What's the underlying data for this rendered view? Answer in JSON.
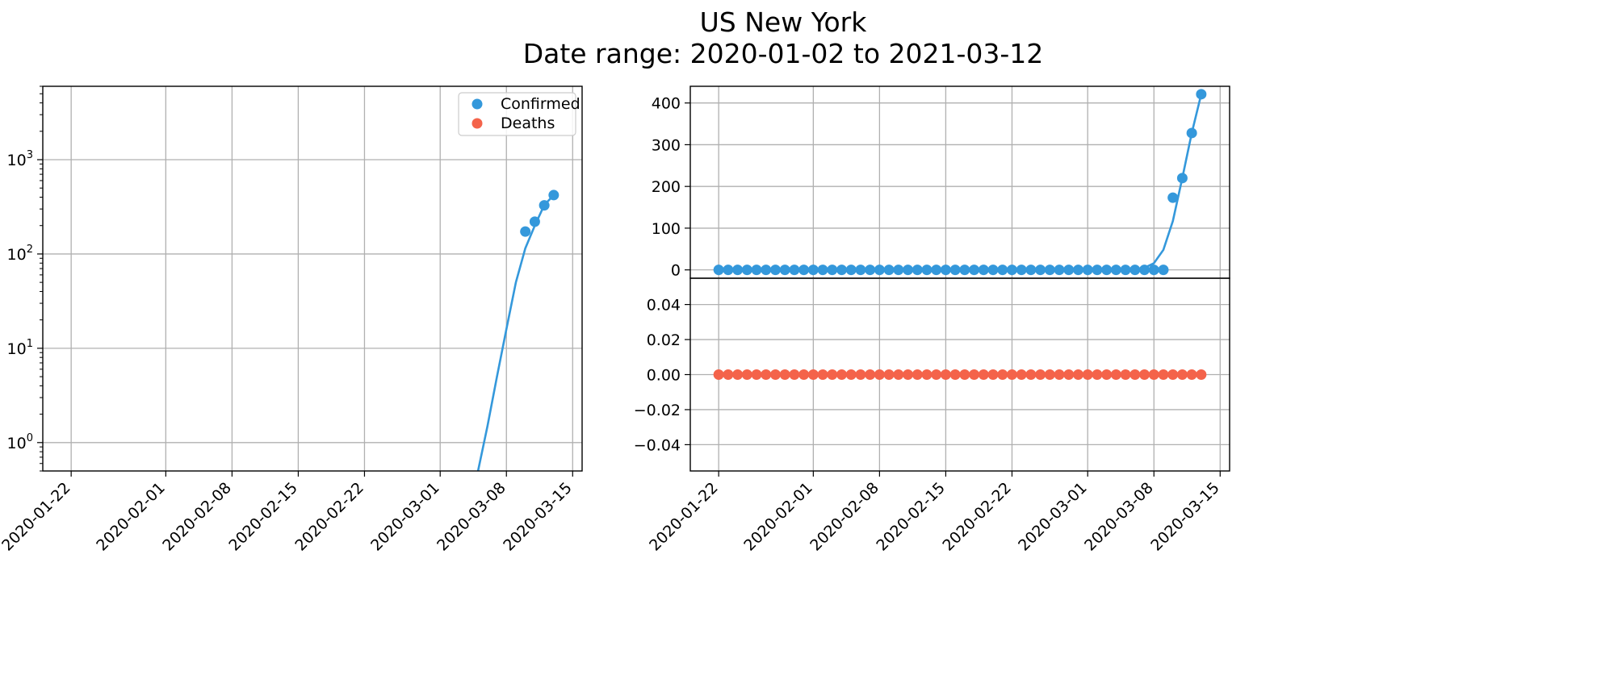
{
  "title": {
    "line1": "US New York",
    "line2": "Date range: 2020-01-02 to 2021-03-12"
  },
  "colors": {
    "confirmed": "#3498db",
    "deaths": "#f4634a",
    "grid": "#b0b0b0",
    "axis": "#000000"
  },
  "chart_data": [
    {
      "type": "line",
      "panel": "left",
      "scale": "log",
      "grid": true,
      "legend": "top-right",
      "x_ticks": [
        "2020-01-22",
        "2020-02-01",
        "2020-02-08",
        "2020-02-15",
        "2020-02-22",
        "2020-03-01",
        "2020-03-08",
        "2020-03-15"
      ],
      "y_ticks": [
        1,
        10,
        100,
        1000
      ],
      "y_tick_labels": [
        {
          "base": "10",
          "exp": "0"
        },
        {
          "base": "10",
          "exp": "1"
        },
        {
          "base": "10",
          "exp": "2"
        },
        {
          "base": "10",
          "exp": "3"
        }
      ],
      "xlim": [
        "2020-01-19",
        "2020-03-16"
      ],
      "ylim": [
        0.5,
        6000
      ],
      "legend_entries": [
        "Confirmed",
        "Deaths"
      ],
      "series": [
        {
          "name": "Confirmed",
          "marker": "point",
          "x": [
            "2020-03-10",
            "2020-03-11",
            "2020-03-12",
            "2020-03-13"
          ],
          "values": [
            173,
            220,
            328,
            421
          ]
        },
        {
          "name": "Confirmed",
          "marker": "line",
          "x": [
            "2020-03-05",
            "2020-03-06",
            "2020-03-07",
            "2020-03-08",
            "2020-03-09",
            "2020-03-10",
            "2020-03-11",
            "2020-03-12",
            "2020-03-13"
          ],
          "values": [
            0.5,
            1.5,
            5,
            16,
            50,
            115,
            200,
            330,
            421
          ]
        }
      ]
    },
    {
      "type": "line",
      "panel": "right-top",
      "grid": true,
      "y_ticks": [
        0,
        100,
        200,
        300,
        400
      ],
      "ylim": [
        -20,
        440
      ],
      "xlim": [
        "2020-01-19",
        "2020-03-16"
      ],
      "series": [
        {
          "name": "Confirmed",
          "marker": "point",
          "x": [
            "2020-01-22",
            "2020-01-23",
            "2020-01-24",
            "2020-01-25",
            "2020-01-26",
            "2020-01-27",
            "2020-01-28",
            "2020-01-29",
            "2020-01-30",
            "2020-01-31",
            "2020-02-01",
            "2020-02-02",
            "2020-02-03",
            "2020-02-04",
            "2020-02-05",
            "2020-02-06",
            "2020-02-07",
            "2020-02-08",
            "2020-02-09",
            "2020-02-10",
            "2020-02-11",
            "2020-02-12",
            "2020-02-13",
            "2020-02-14",
            "2020-02-15",
            "2020-02-16",
            "2020-02-17",
            "2020-02-18",
            "2020-02-19",
            "2020-02-20",
            "2020-02-21",
            "2020-02-22",
            "2020-02-23",
            "2020-02-24",
            "2020-02-25",
            "2020-02-26",
            "2020-02-27",
            "2020-02-28",
            "2020-02-29",
            "2020-03-01",
            "2020-03-02",
            "2020-03-03",
            "2020-03-04",
            "2020-03-05",
            "2020-03-06",
            "2020-03-07",
            "2020-03-08",
            "2020-03-09",
            "2020-03-10",
            "2020-03-11",
            "2020-03-12",
            "2020-03-13"
          ],
          "values": [
            0,
            0,
            0,
            0,
            0,
            0,
            0,
            0,
            0,
            0,
            0,
            0,
            0,
            0,
            0,
            0,
            0,
            0,
            0,
            0,
            0,
            0,
            0,
            0,
            0,
            0,
            0,
            0,
            0,
            0,
            0,
            0,
            0,
            0,
            0,
            0,
            0,
            0,
            0,
            0,
            0,
            0,
            0,
            0,
            0,
            0,
            0,
            0,
            173,
            220,
            328,
            421
          ]
        },
        {
          "name": "Confirmed",
          "marker": "line",
          "x": [
            "2020-01-22",
            "2020-03-04",
            "2020-03-05",
            "2020-03-06",
            "2020-03-07",
            "2020-03-08",
            "2020-03-09",
            "2020-03-10",
            "2020-03-11",
            "2020-03-12",
            "2020-03-13"
          ],
          "values": [
            0,
            0,
            0,
            1,
            5,
            16,
            48,
            117,
            220,
            328,
            421
          ]
        }
      ]
    },
    {
      "type": "scatter",
      "panel": "right-bottom",
      "grid": true,
      "x_ticks": [
        "2020-01-22",
        "2020-02-01",
        "2020-02-08",
        "2020-02-15",
        "2020-02-22",
        "2020-03-01",
        "2020-03-08",
        "2020-03-15"
      ],
      "y_ticks": [
        -0.04,
        -0.02,
        0.0,
        0.02,
        0.04
      ],
      "y_tick_labels": [
        "−0.04",
        "−0.02",
        "0.00",
        "0.02",
        "0.04"
      ],
      "ylim": [
        -0.055,
        0.055
      ],
      "xlim": [
        "2020-01-19",
        "2020-03-16"
      ],
      "series": [
        {
          "name": "Deaths",
          "marker": "point",
          "x": [
            "2020-01-22",
            "2020-01-23",
            "2020-01-24",
            "2020-01-25",
            "2020-01-26",
            "2020-01-27",
            "2020-01-28",
            "2020-01-29",
            "2020-01-30",
            "2020-01-31",
            "2020-02-01",
            "2020-02-02",
            "2020-02-03",
            "2020-02-04",
            "2020-02-05",
            "2020-02-06",
            "2020-02-07",
            "2020-02-08",
            "2020-02-09",
            "2020-02-10",
            "2020-02-11",
            "2020-02-12",
            "2020-02-13",
            "2020-02-14",
            "2020-02-15",
            "2020-02-16",
            "2020-02-17",
            "2020-02-18",
            "2020-02-19",
            "2020-02-20",
            "2020-02-21",
            "2020-02-22",
            "2020-02-23",
            "2020-02-24",
            "2020-02-25",
            "2020-02-26",
            "2020-02-27",
            "2020-02-28",
            "2020-02-29",
            "2020-03-01",
            "2020-03-02",
            "2020-03-03",
            "2020-03-04",
            "2020-03-05",
            "2020-03-06",
            "2020-03-07",
            "2020-03-08",
            "2020-03-09",
            "2020-03-10",
            "2020-03-11",
            "2020-03-12",
            "2020-03-13"
          ],
          "values": [
            0,
            0,
            0,
            0,
            0,
            0,
            0,
            0,
            0,
            0,
            0,
            0,
            0,
            0,
            0,
            0,
            0,
            0,
            0,
            0,
            0,
            0,
            0,
            0,
            0,
            0,
            0,
            0,
            0,
            0,
            0,
            0,
            0,
            0,
            0,
            0,
            0,
            0,
            0,
            0,
            0,
            0,
            0,
            0,
            0,
            0,
            0,
            0,
            0,
            0,
            0,
            0
          ]
        }
      ]
    }
  ]
}
